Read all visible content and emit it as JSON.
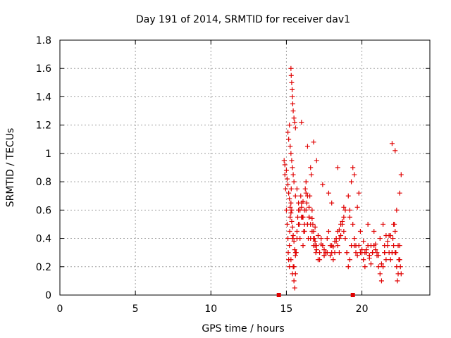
{
  "chart_data": {
    "type": "scatter",
    "title": "Day 191 of 2014, SRMTID for receiver dav1",
    "xlabel": "GPS time / hours",
    "ylabel": "SRMTID / TECUs",
    "xlim": [
      0,
      24.5
    ],
    "ylim": [
      0,
      1.8
    ],
    "xticks": [
      0,
      5,
      10,
      15,
      20
    ],
    "xtick_labels": [
      "0",
      "5",
      "10",
      "15",
      "20"
    ],
    "yticks": [
      0,
      0.2,
      0.4,
      0.6,
      0.8,
      1,
      1.2,
      1.4,
      1.6,
      1.8
    ],
    "ytick_labels": [
      "0",
      "0.2",
      "0.4",
      "0.6",
      "0.8",
      "1",
      "1.2",
      "1.4",
      "1.6",
      "1.8"
    ],
    "grid": true,
    "series": [
      {
        "name": "SRMTID",
        "marker": "plus",
        "color": "#e00000",
        "x": [
          14.85,
          14.9,
          14.95,
          15.0,
          15.05,
          15.1,
          15.12,
          15.15,
          15.2,
          15.22,
          15.25,
          15.3,
          15.32,
          15.35,
          15.4,
          15.45,
          15.5,
          15.55,
          15.6,
          15.65,
          15.7,
          15.75,
          15.8,
          15.85,
          15.9,
          15.95,
          16.0,
          16.05,
          16.1,
          16.15,
          16.2,
          16.25,
          16.3,
          16.35,
          16.4,
          16.45,
          16.5,
          16.55,
          16.6,
          16.65,
          16.7,
          16.75,
          16.8,
          16.85,
          16.9,
          16.95,
          17.0,
          17.1,
          17.2,
          17.3,
          17.4,
          17.5,
          17.6,
          17.7,
          17.8,
          17.9,
          18.0,
          18.1,
          18.2,
          18.3,
          18.4,
          18.5,
          18.6,
          18.7,
          18.8,
          18.9,
          19.0,
          19.1,
          19.2,
          19.3,
          19.4,
          19.5,
          19.6,
          19.7,
          19.8,
          19.9,
          20.0,
          20.1,
          20.2,
          20.3,
          20.4,
          20.5,
          20.6,
          20.7,
          20.8,
          20.9,
          21.0,
          21.1,
          21.2,
          21.3,
          21.4,
          21.5,
          21.6,
          21.7,
          21.8,
          21.9,
          22.0,
          22.05,
          22.1,
          22.15,
          22.2,
          22.25,
          22.3,
          22.35,
          22.4,
          22.45,
          22.5,
          22.55,
          22.6,
          15.1,
          15.15,
          15.2,
          15.25,
          15.3,
          15.35,
          15.4,
          15.45,
          15.5,
          15.6,
          15.7,
          15.8,
          15.9,
          16.0,
          16.1,
          16.2,
          16.3,
          16.4,
          16.5,
          16.6,
          16.7,
          16.8,
          16.9,
          17.0,
          17.5,
          18.0,
          18.5,
          19.0,
          19.5,
          20.0,
          20.5,
          21.0,
          21.5,
          22.0,
          22.5,
          15.2,
          15.3,
          15.4,
          15.5,
          15.6,
          15.7,
          15.8,
          16.0,
          16.2,
          16.4,
          16.6,
          16.8,
          17.2,
          17.6,
          18.2,
          18.4,
          18.6,
          18.8,
          19.2,
          19.6,
          20.2,
          20.6,
          21.2,
          21.6,
          22.2,
          22.4,
          14.9,
          15.0,
          15.05,
          15.1,
          15.15,
          15.2,
          15.25,
          15.3,
          15.35,
          15.4,
          15.45,
          15.5,
          15.55,
          15.6,
          16.1,
          16.3,
          16.5,
          16.7,
          16.9,
          17.1,
          17.3,
          17.5,
          17.7,
          17.9,
          18.1,
          18.3,
          18.5,
          18.7,
          18.9,
          19.1,
          19.3,
          19.5,
          19.7,
          19.9,
          20.1,
          20.3,
          20.5,
          20.7,
          20.9,
          21.1,
          21.3,
          21.5,
          21.7,
          21.9,
          22.1,
          22.3,
          22.5,
          15.3,
          15.32,
          15.35,
          15.38,
          15.4,
          15.42,
          15.45,
          15.5,
          15.55,
          15.6,
          16.0,
          16.4,
          16.8,
          17.0,
          17.4,
          17.8,
          18.0,
          18.4,
          18.8,
          19.2,
          19.4,
          19.8,
          20.4,
          20.8,
          21.4,
          21.8,
          22.0,
          22.2,
          22.6
        ],
        "y": [
          0.95,
          0.85,
          0.75,
          0.6,
          0.5,
          0.4,
          0.3,
          0.25,
          0.35,
          0.45,
          0.55,
          0.65,
          0.75,
          0.6,
          0.4,
          0.2,
          0.1,
          0.05,
          0.15,
          0.3,
          0.45,
          0.55,
          0.6,
          0.5,
          0.4,
          0.7,
          0.65,
          0.55,
          0.35,
          0.45,
          0.6,
          0.75,
          0.8,
          0.65,
          0.5,
          0.4,
          0.55,
          0.7,
          0.9,
          0.85,
          0.6,
          0.5,
          0.45,
          0.4,
          0.35,
          0.3,
          0.35,
          0.25,
          0.3,
          0.4,
          0.35,
          0.28,
          0.3,
          0.4,
          0.45,
          0.35,
          0.3,
          0.25,
          0.3,
          0.4,
          0.35,
          0.3,
          0.42,
          0.5,
          0.45,
          0.4,
          0.3,
          0.2,
          0.25,
          0.35,
          0.5,
          0.4,
          0.3,
          0.28,
          0.35,
          0.3,
          0.32,
          0.25,
          0.2,
          0.3,
          0.35,
          0.28,
          0.22,
          0.3,
          0.35,
          0.32,
          0.28,
          0.2,
          0.15,
          0.1,
          0.2,
          0.3,
          0.25,
          0.35,
          0.3,
          0.25,
          0.3,
          0.4,
          0.35,
          0.5,
          0.45,
          0.3,
          0.2,
          0.1,
          0.15,
          0.25,
          0.35,
          0.2,
          0.15,
          1.15,
          1.1,
          1.2,
          1.05,
          1.0,
          0.95,
          0.9,
          0.85,
          0.8,
          0.7,
          0.75,
          0.65,
          0.6,
          0.62,
          0.55,
          0.5,
          0.6,
          0.7,
          0.55,
          0.5,
          0.45,
          0.4,
          0.38,
          0.32,
          0.28,
          0.35,
          0.4,
          0.3,
          0.35,
          0.3,
          0.28,
          0.3,
          0.35,
          0.3,
          0.25,
          0.2,
          0.25,
          0.15,
          0.2,
          0.3,
          0.4,
          0.5,
          0.55,
          0.45,
          0.5,
          0.4,
          0.35,
          0.25,
          0.3,
          0.38,
          0.45,
          0.5,
          0.55,
          0.6,
          0.35,
          0.3,
          0.35,
          0.4,
          0.42,
          0.3,
          0.35,
          0.92,
          0.88,
          0.82,
          0.78,
          0.72,
          0.68,
          0.62,
          0.58,
          0.52,
          0.48,
          0.42,
          0.38,
          0.32,
          0.28,
          0.66,
          0.72,
          0.62,
          0.54,
          0.48,
          0.42,
          0.36,
          0.32,
          0.3,
          0.28,
          0.34,
          0.38,
          0.46,
          0.52,
          0.6,
          0.7,
          0.8,
          0.85,
          0.62,
          0.45,
          0.38,
          0.32,
          0.26,
          0.3,
          0.36,
          0.28,
          0.22,
          0.3,
          0.38,
          0.42,
          0.5,
          0.6,
          0.72,
          1.6,
          1.55,
          1.5,
          1.45,
          1.4,
          1.35,
          1.3,
          1.25,
          1.22,
          1.18,
          1.22,
          1.05,
          1.08,
          0.95,
          0.78,
          0.72,
          0.65,
          0.9,
          0.62,
          0.55,
          0.9,
          0.72,
          0.5,
          0.45,
          0.5,
          0.42,
          1.07,
          1.02,
          0.85
        ],
        "x_markers": [
          14.5,
          19.4
        ]
      }
    ]
  }
}
